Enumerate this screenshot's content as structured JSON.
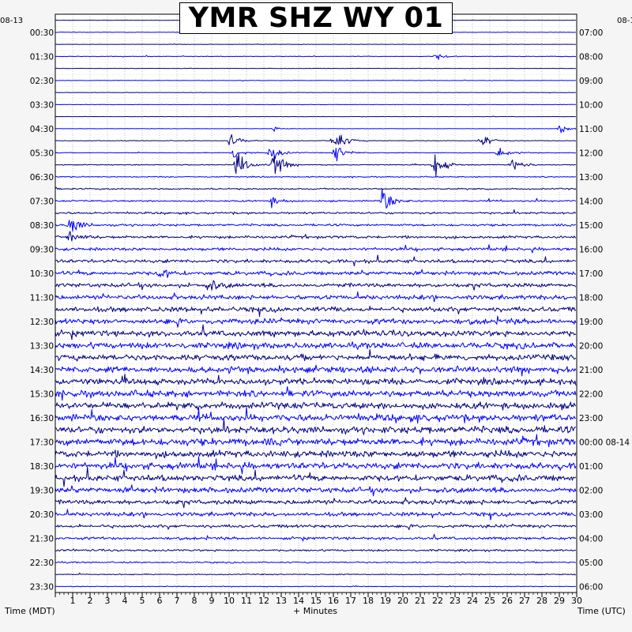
{
  "title": "YMR SHZ WY 01",
  "left_start_date": "08-13",
  "right_start_date": "08-1",
  "left_axis_label": "Time (MDT)",
  "right_axis_label": "Time (UTC)",
  "x_axis_label": "+ Minutes",
  "chart_data": {
    "type": "helicorder",
    "station": "YMR",
    "channel": "SHZ",
    "network": "WY",
    "location": "01",
    "minutes_per_line": 30,
    "xlim": [
      0,
      30
    ],
    "x_ticks": [
      "1",
      "2",
      "3",
      "4",
      "5",
      "6",
      "7",
      "8",
      "9",
      "10",
      "11",
      "12",
      "13",
      "14",
      "15",
      "16",
      "17",
      "18",
      "19",
      "20",
      "21",
      "22",
      "23",
      "24",
      "25",
      "26",
      "27",
      "28",
      "29",
      "30"
    ],
    "left_time_labels": [
      "00:30",
      "01:30",
      "02:30",
      "03:30",
      "04:30",
      "05:30",
      "06:30",
      "07:30",
      "08:30",
      "09:30",
      "10:30",
      "11:30",
      "12:30",
      "13:30",
      "14:30",
      "15:30",
      "16:30",
      "17:30",
      "18:30",
      "19:30",
      "20:30",
      "21:30",
      "22:30",
      "23:30"
    ],
    "right_time_labels": [
      "07:00",
      "08:00",
      "09:00",
      "10:00",
      "11:00",
      "12:00",
      "13:00",
      "14:00",
      "15:00",
      "16:00",
      "17:00",
      "18:00",
      "19:00",
      "20:00",
      "21:00",
      "22:00",
      "23:00",
      "00:00 08-14",
      "01:00",
      "02:00",
      "03:00",
      "04:00",
      "05:00",
      "06:00"
    ],
    "trace_colors": [
      "#000080",
      "#0000ff"
    ],
    "grid": true,
    "trace_lines": 48,
    "noise_level_by_line": [
      0.2,
      0.25,
      0.2,
      0.3,
      0.25,
      0.3,
      0.2,
      0.25,
      0.2,
      0.2,
      0.35,
      0.4,
      0.5,
      0.6,
      0.8,
      0.9,
      1.1,
      1.2,
      1.5,
      1.7,
      1.9,
      2.1,
      2.3,
      2.5,
      2.8,
      3.0,
      3.2,
      3.3,
      3.4,
      3.5,
      3.5,
      3.6,
      3.7,
      3.8,
      3.9,
      4.0,
      3.8,
      3.6,
      3.4,
      3.0,
      2.6,
      2.2,
      1.8,
      1.5,
      1.1,
      0.8,
      0.6,
      0.4
    ],
    "events": [
      {
        "line": 3,
        "minute": 21.9,
        "amp": 4
      },
      {
        "line": 9,
        "minute": 29.0,
        "amp": 6
      },
      {
        "line": 9,
        "minute": 12.5,
        "amp": 3
      },
      {
        "line": 10,
        "minute": 10.0,
        "amp": 10
      },
      {
        "line": 10,
        "minute": 16.0,
        "amp": 20
      },
      {
        "line": 10,
        "minute": 24.5,
        "amp": 9
      },
      {
        "line": 11,
        "minute": 10.2,
        "amp": 8
      },
      {
        "line": 11,
        "minute": 12.3,
        "amp": 14
      },
      {
        "line": 11,
        "minute": 16.1,
        "amp": 12
      },
      {
        "line": 11,
        "minute": 25.5,
        "amp": 8
      },
      {
        "line": 12,
        "minute": 10.4,
        "amp": 20
      },
      {
        "line": 12,
        "minute": 12.5,
        "amp": 20
      },
      {
        "line": 12,
        "minute": 21.8,
        "amp": 18
      },
      {
        "line": 12,
        "minute": 26.3,
        "amp": 10
      },
      {
        "line": 15,
        "minute": 18.8,
        "amp": 16
      },
      {
        "line": 15,
        "minute": 12.3,
        "amp": 7
      },
      {
        "line": 17,
        "minute": 0.8,
        "amp": 14
      },
      {
        "line": 18,
        "minute": 0.8,
        "amp": 10
      },
      {
        "line": 21,
        "minute": 6.0,
        "amp": 7
      },
      {
        "line": 22,
        "minute": 8.8,
        "amp": 8
      }
    ]
  }
}
